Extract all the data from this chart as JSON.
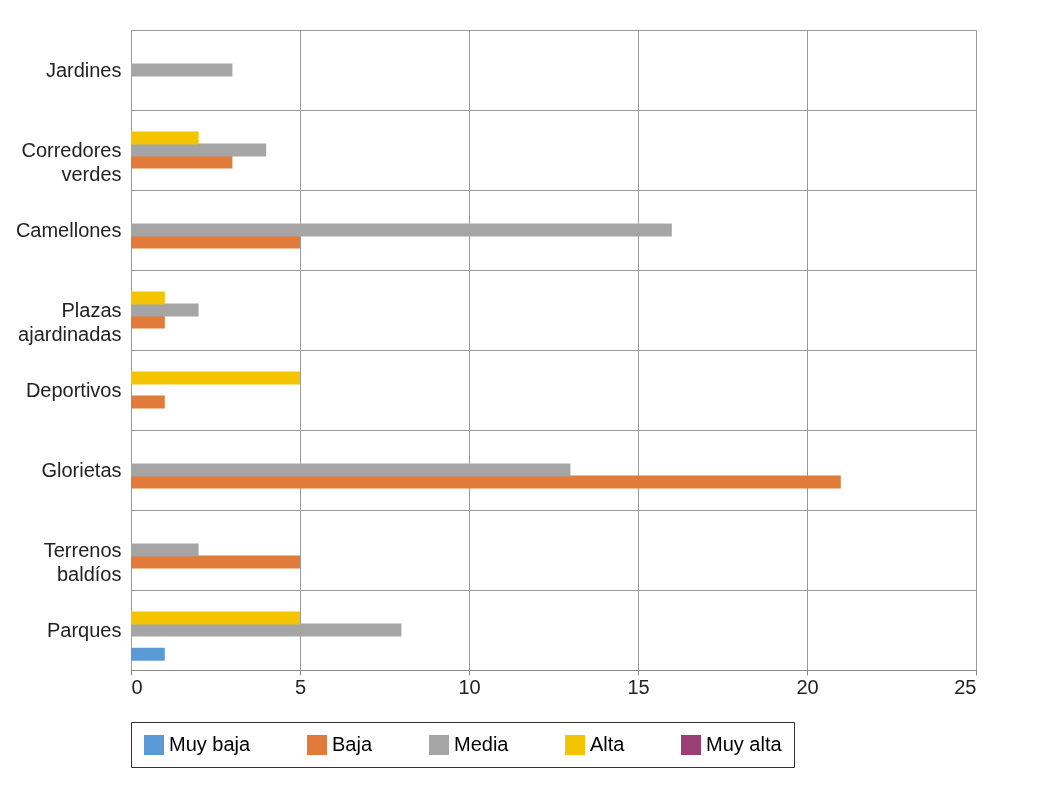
{
  "chart_data": {
    "type": "bar",
    "orientation": "horizontal",
    "categories": [
      "Jardines",
      "Corredores verdes",
      "Camellones",
      "Plazas ajardinadas",
      "Deportivos",
      "Glorietas",
      "Terrenos baldíos",
      "Parques"
    ],
    "series": [
      {
        "name": "Muy baja",
        "color": "#5b9bd5",
        "values": [
          null,
          null,
          null,
          null,
          null,
          null,
          null,
          1
        ]
      },
      {
        "name": "Baja",
        "color": "#e07b39",
        "values": [
          null,
          3,
          5,
          1,
          1,
          21,
          5,
          null
        ]
      },
      {
        "name": "Media",
        "color": "#a5a5a5",
        "values": [
          3,
          4,
          16,
          2,
          null,
          13,
          2,
          8
        ]
      },
      {
        "name": "Alta",
        "color": "#f5c400",
        "values": [
          null,
          2,
          null,
          1,
          5,
          null,
          null,
          5
        ]
      },
      {
        "name": "Muy alta",
        "color": "#993f73",
        "values": [
          null,
          null,
          null,
          null,
          null,
          null,
          null,
          null
        ]
      }
    ],
    "xlim": [
      0,
      25
    ],
    "xticks": [
      0,
      5,
      10,
      15,
      20,
      25
    ],
    "grid": true,
    "legend": "bottom"
  }
}
